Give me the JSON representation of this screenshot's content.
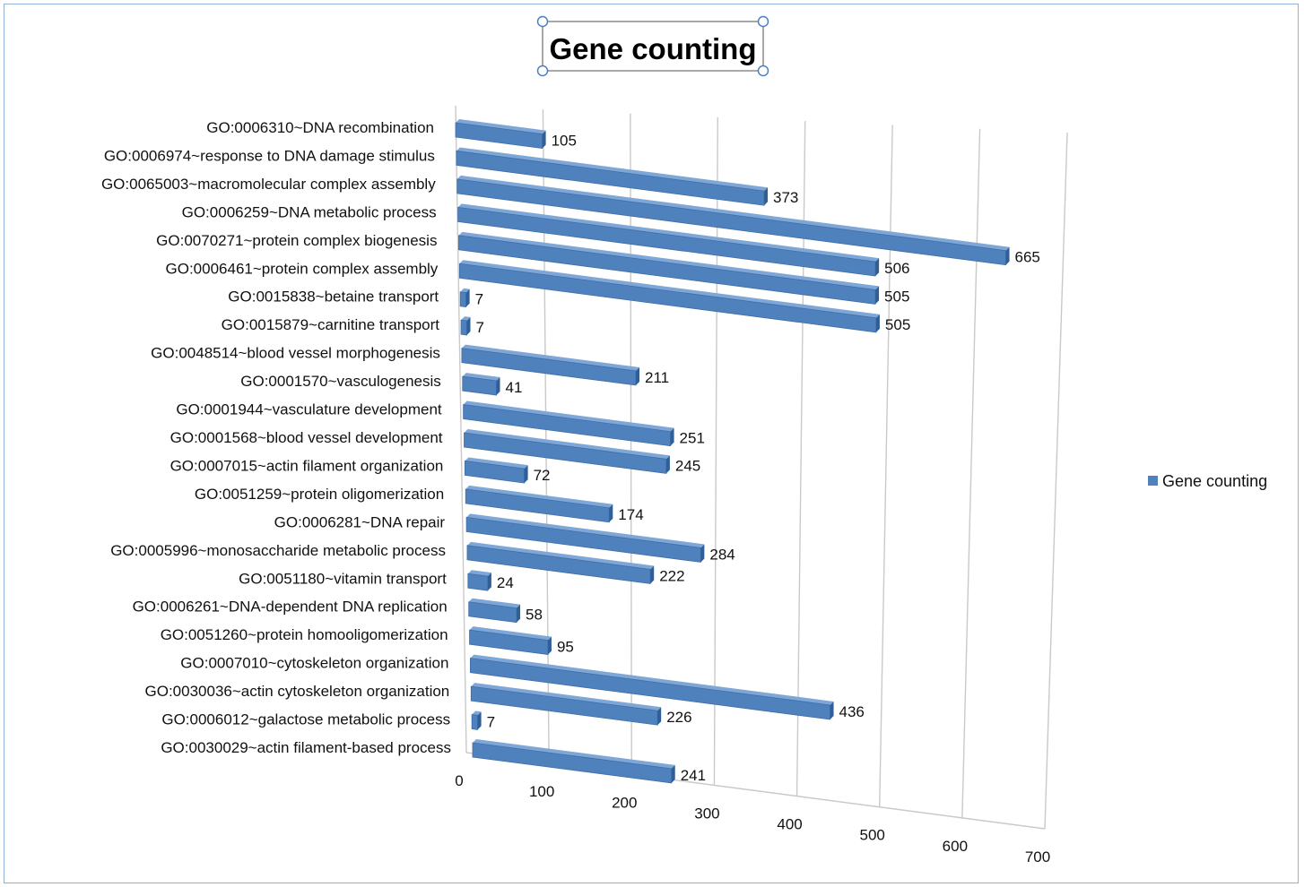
{
  "chart_data": {
    "type": "bar",
    "orientation": "horizontal",
    "title": "Gene counting",
    "xlim": [
      0,
      700
    ],
    "x_ticks": [
      "0",
      "100",
      "200",
      "300",
      "400",
      "500",
      "600",
      "700"
    ],
    "grid": true,
    "legend": {
      "position": "right",
      "entries": [
        "Gene counting"
      ]
    },
    "bar_color": "#4f81bd",
    "categories": [
      "GO:0006310~DNA recombination",
      "GO:0006974~response to DNA damage stimulus",
      "GO:0065003~macromolecular complex assembly",
      "GO:0006259~DNA metabolic process",
      "GO:0070271~protein complex biogenesis",
      "GO:0006461~protein complex assembly",
      "GO:0015838~betaine transport",
      "GO:0015879~carnitine transport",
      "GO:0048514~blood vessel morphogenesis",
      "GO:0001570~vasculogenesis",
      "GO:0001944~vasculature development",
      "GO:0001568~blood vessel development",
      "GO:0007015~actin filament organization",
      "GO:0051259~protein oligomerization",
      "GO:0006281~DNA repair",
      "GO:0005996~monosaccharide metabolic process",
      "GO:0051180~vitamin transport",
      "GO:0006261~DNA-dependent DNA replication",
      "GO:0051260~protein homooligomerization",
      "GO:0007010~cytoskeleton organization",
      "GO:0030036~actin cytoskeleton organization",
      "GO:0006012~galactose metabolic process",
      "GO:0030029~actin filament-based process"
    ],
    "series": [
      {
        "name": "Gene counting",
        "values": [
          105,
          373,
          665,
          506,
          505,
          505,
          7,
          7,
          211,
          41,
          251,
          245,
          72,
          174,
          284,
          222,
          24,
          58,
          95,
          436,
          226,
          7,
          241
        ],
        "value_labels": [
          "105",
          "373",
          "665",
          "506",
          "505",
          "505",
          "7",
          "7",
          "211",
          "41",
          "251",
          "245",
          "72",
          "174",
          "284",
          "222",
          "24",
          "58",
          "95",
          "436",
          "226",
          "7",
          "241"
        ]
      }
    ]
  }
}
